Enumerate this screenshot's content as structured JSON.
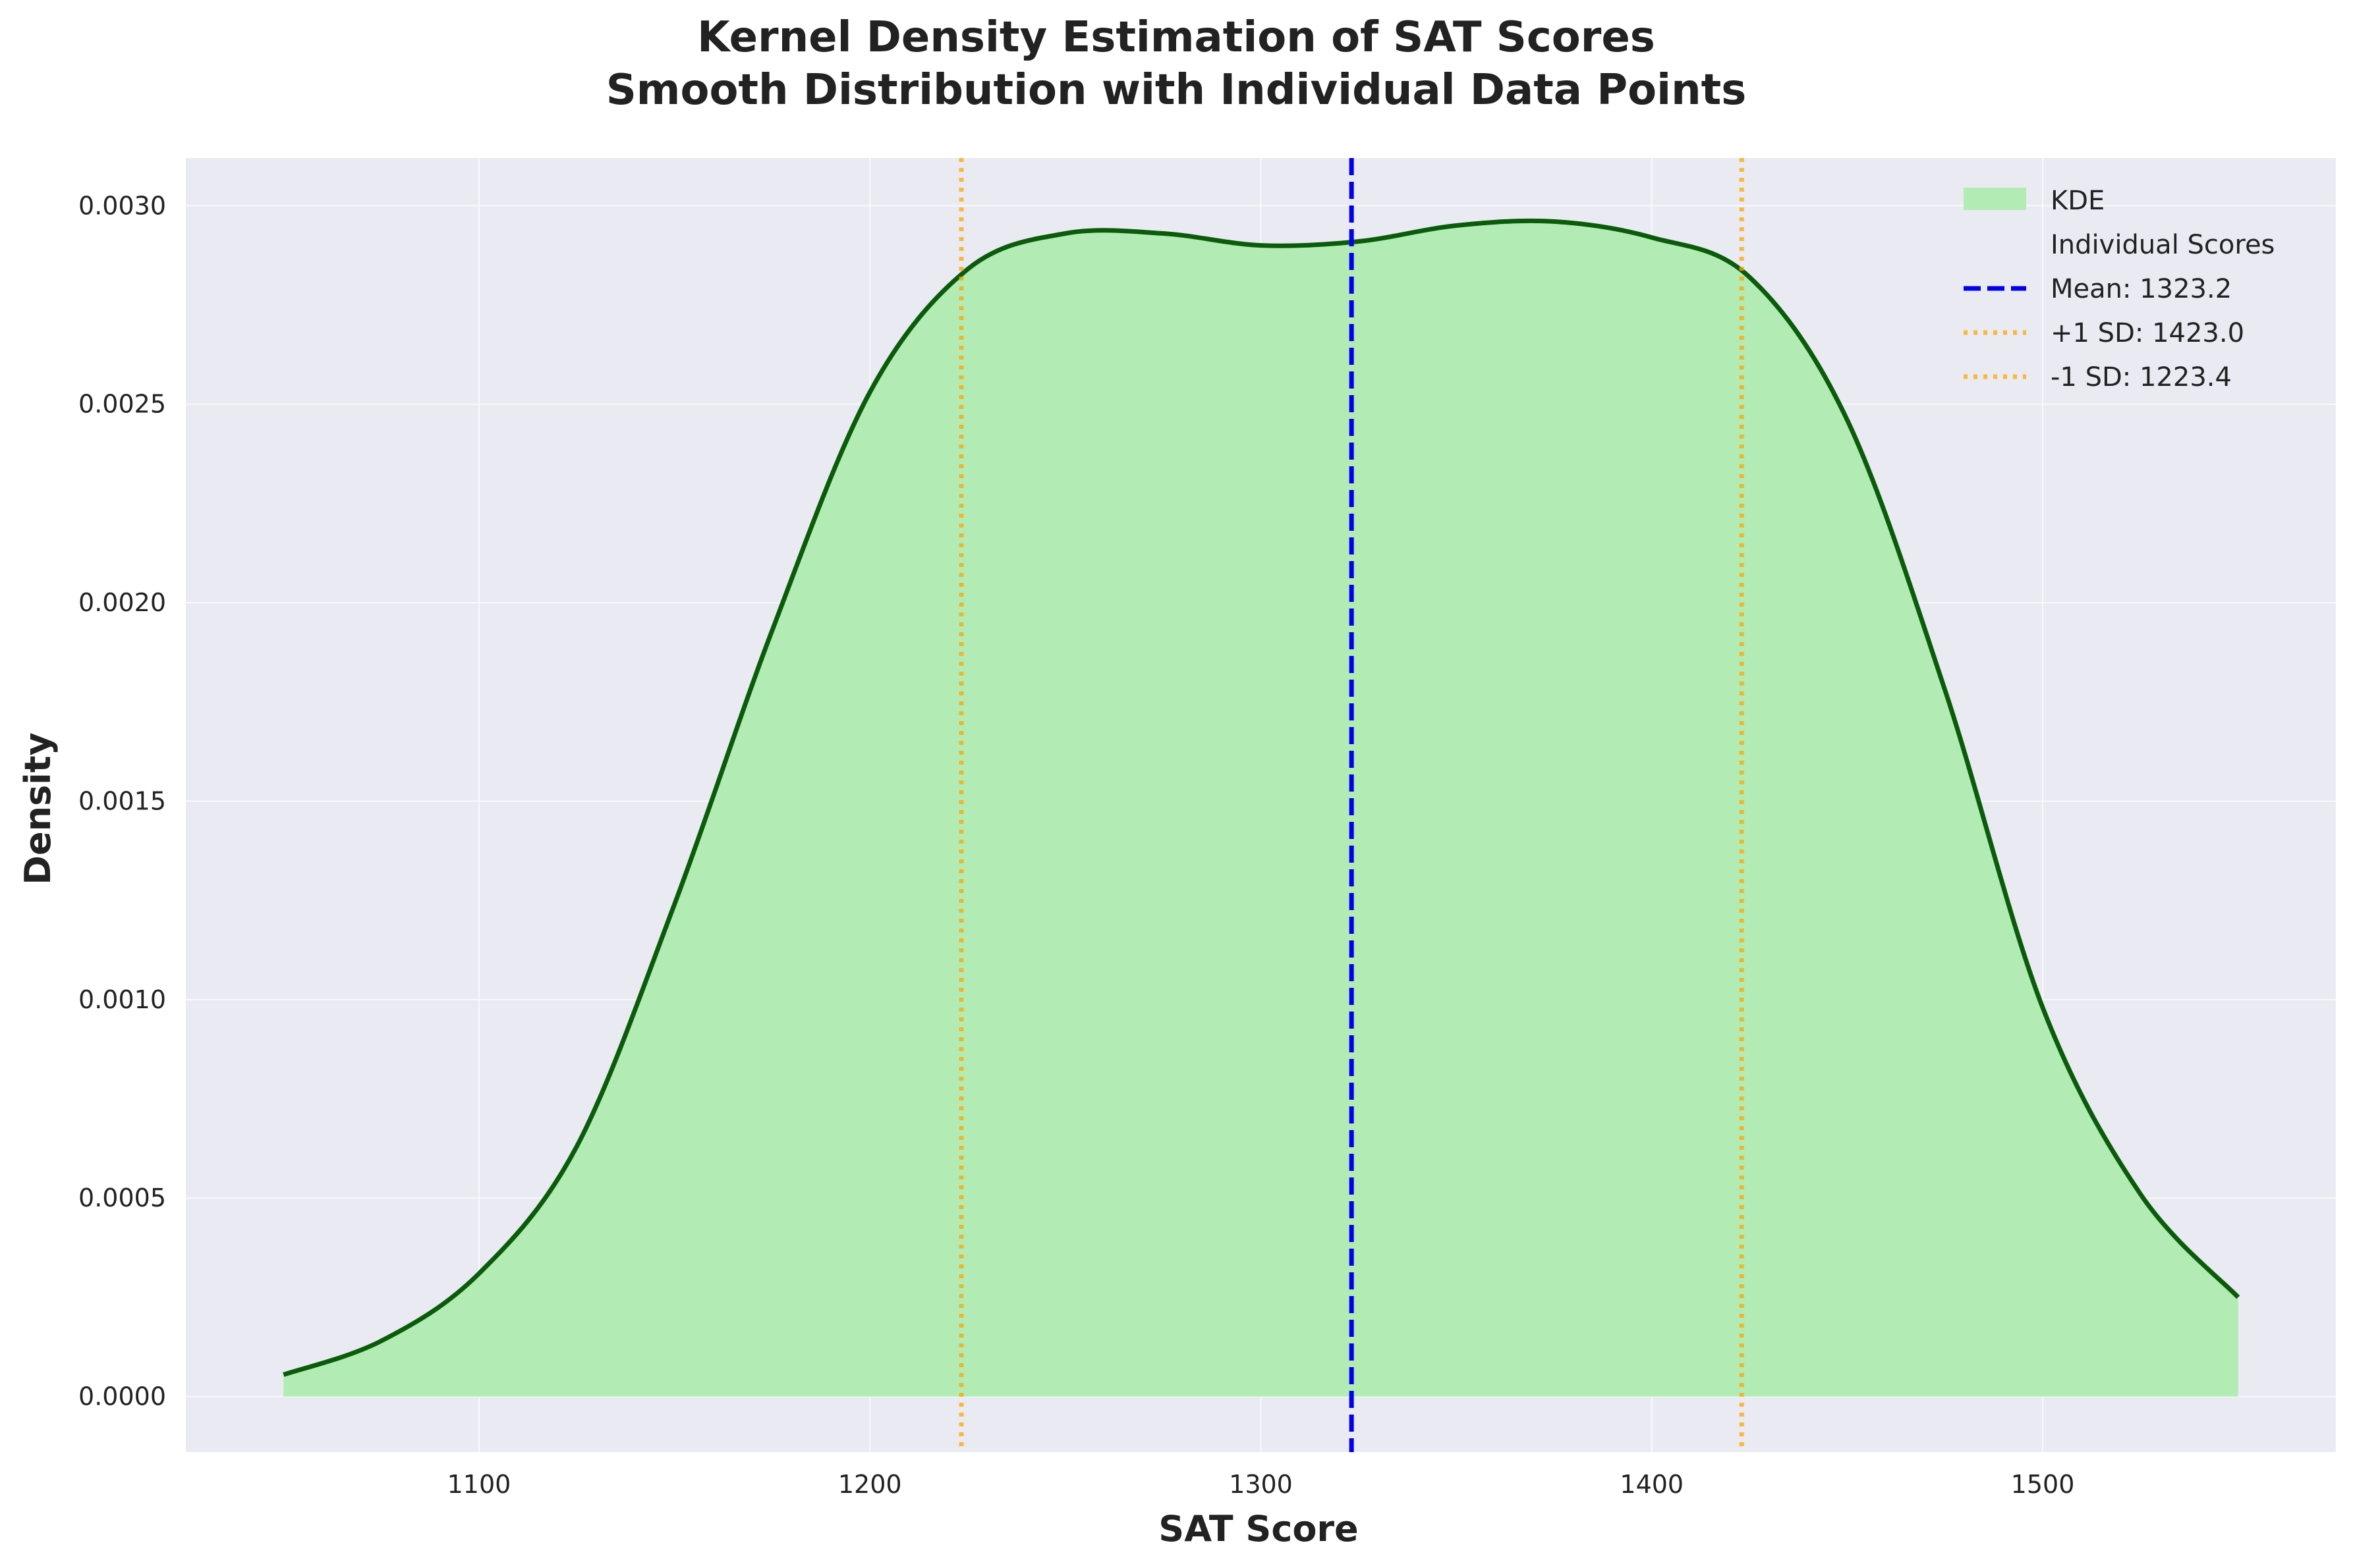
{
  "chart_data": {
    "type": "area",
    "title_line1": "Kernel Density Estimation of SAT Scores",
    "title_line2": "Smooth Distribution with Individual Data Points",
    "xlabel": "SAT Score",
    "ylabel": "Density",
    "xlim": [
      1025,
      1575
    ],
    "ylim": [
      -0.00014,
      0.00312
    ],
    "xticks": [
      1100,
      1200,
      1300,
      1400,
      1500
    ],
    "xtick_labels": [
      "1100",
      "1200",
      "1300",
      "1400",
      "1500"
    ],
    "yticks": [
      0,
      0.0005,
      0.001,
      0.0015,
      0.002,
      0.0025,
      0.003
    ],
    "ytick_labels": [
      "0.0000",
      "0.0005",
      "0.0010",
      "0.0015",
      "0.0020",
      "0.0025",
      "0.0030"
    ],
    "grid": true,
    "legend_position": "top-right",
    "kde": {
      "label": "KDE",
      "fill_color": "#b3ebb5",
      "line_color": "#0a5c0a",
      "x": [
        1050,
        1075,
        1100,
        1125,
        1150,
        1175,
        1200,
        1225,
        1250,
        1275,
        1300,
        1325,
        1350,
        1375,
        1400,
        1425,
        1450,
        1475,
        1500,
        1525,
        1550
      ],
      "y": [
        5.5e-05,
        0.00014,
        0.00031,
        0.00063,
        0.00124,
        0.00193,
        0.00253,
        0.00284,
        0.00293,
        0.00293,
        0.0029,
        0.00291,
        0.00295,
        0.00296,
        0.00292,
        0.00282,
        0.00246,
        0.00178,
        0.00098,
        0.00051,
        0.00025
      ]
    },
    "individual_scores": {
      "label": "Individual Scores"
    },
    "mean": {
      "label": "Mean: 1323.2",
      "value": 1323.2,
      "color": "#0000ee"
    },
    "plus_sd": {
      "label": "+1 SD: 1423.0",
      "value": 1423.0,
      "color": "#ffa500"
    },
    "minus_sd": {
      "label": "-1 SD: 1223.4",
      "value": 1223.4,
      "color": "#ffa500"
    }
  }
}
